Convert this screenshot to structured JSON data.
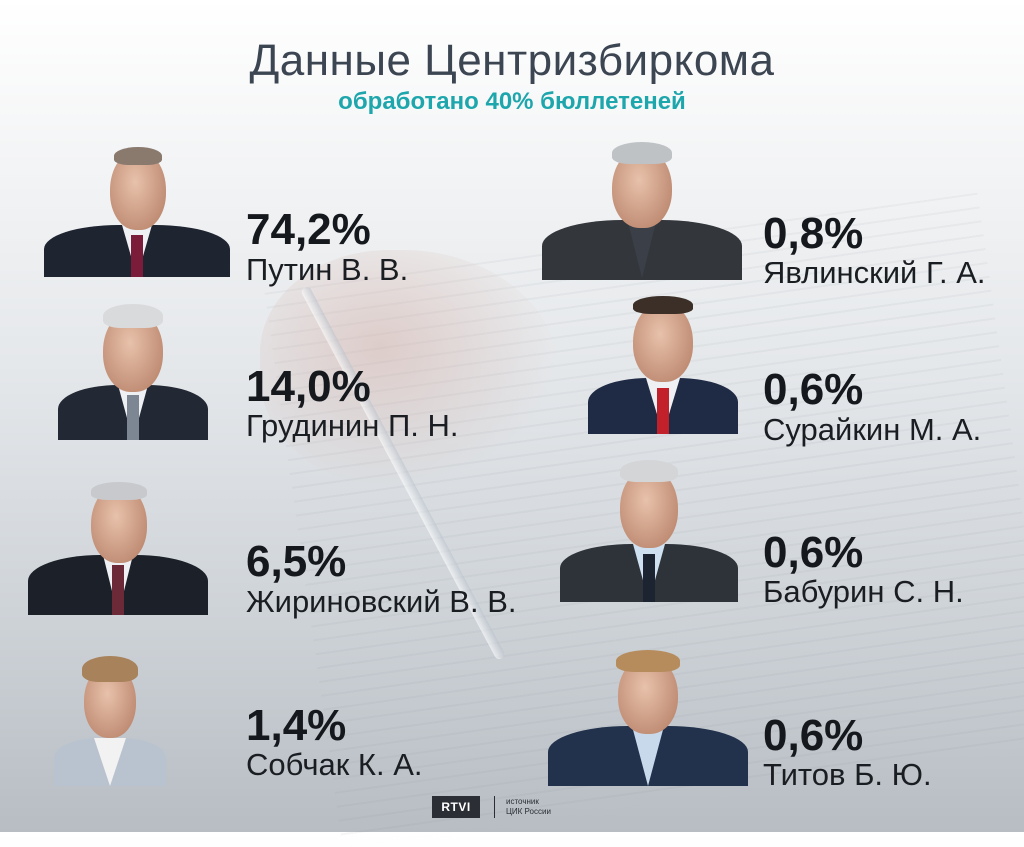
{
  "header": {
    "title": "Данные Центризбиркома",
    "subtitle": "обработано 40% бюллетеней"
  },
  "candidates": [
    {
      "percent": "74,2%",
      "name": "Путин В. В."
    },
    {
      "percent": "14,0%",
      "name": "Грудинин П. Н."
    },
    {
      "percent": "6,5%",
      "name": "Жириновский В. В."
    },
    {
      "percent": "1,4%",
      "name": "Собчак К. А."
    },
    {
      "percent": "0,8%",
      "name": "Явлинский Г. А."
    },
    {
      "percent": "0,6%",
      "name": "Сурайкин М. А."
    },
    {
      "percent": "0,6%",
      "name": "Бабурин С. Н."
    },
    {
      "percent": "0,6%",
      "name": "Титов Б. Ю."
    }
  ],
  "footer": {
    "logo": "RTVI",
    "source_line1": "источник",
    "source_line2": "ЦИК России"
  },
  "colors": {
    "accent": "#1ea6ad",
    "title": "#3c4552",
    "text": "#15181c"
  }
}
